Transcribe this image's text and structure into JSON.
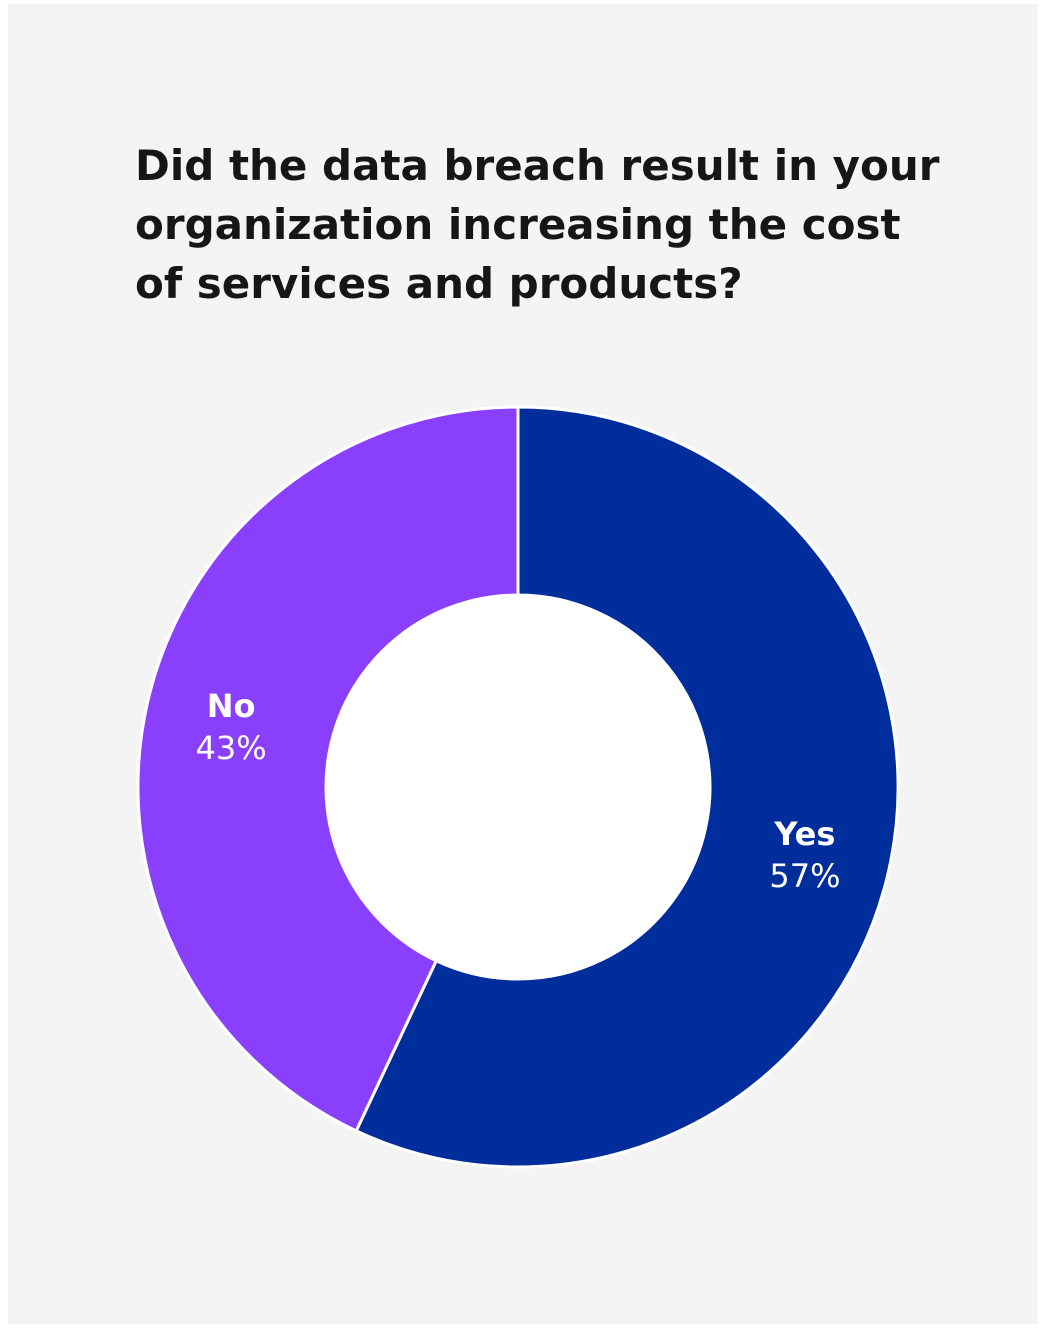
{
  "chart_data": {
    "type": "pie",
    "title": "Did the data breach result in your organization increasing the cost of services and products?",
    "donut": true,
    "start_angle_deg": 0,
    "direction": "clockwise",
    "slices": [
      {
        "label": "Yes",
        "value": 57,
        "value_label": "57%",
        "color": "#002d9c"
      },
      {
        "label": "No",
        "value": 43,
        "value_label": "43%",
        "color": "#8a3ffc"
      }
    ],
    "separator_color": "#ffffff",
    "background": "#f4f4f4",
    "hole_color": "#ffffff"
  }
}
